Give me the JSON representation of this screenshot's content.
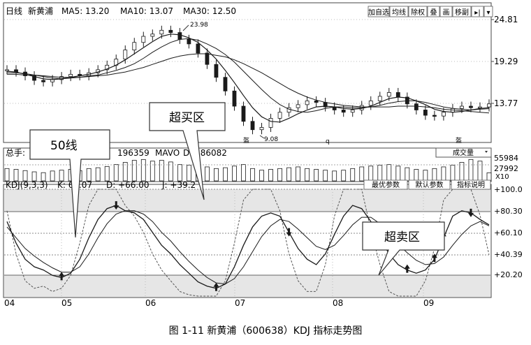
{
  "price_header": {
    "period": "日线",
    "stock": "新黄浦",
    "ma5": "MA5: 13.20",
    "ma10": "MA10: 13.07",
    "ma30": "MA30: 12.50"
  },
  "toolbar": [
    "加自选",
    "均线",
    "除权",
    "叠",
    "画",
    "移副",
    "▸|",
    "▾"
  ],
  "volume_header": {
    "label": "总手:",
    "value": "196359",
    "mavol": "MAVO",
    "mavol_value": "D: 286082",
    "dropdown": "成交量"
  },
  "kdj_header": {
    "name": "KDJ(9,3,3)",
    "k": "K: 67.07",
    "d": "D: +66.00",
    "j": "J: +39.2"
  },
  "kdj_buttons": [
    "最优参数",
    "默认参数",
    "指标说明"
  ],
  "price_axis": [
    "24.81",
    "19.29",
    "13.77"
  ],
  "volume_axis": [
    "55984",
    "27992",
    "X10"
  ],
  "kdj_axis": [
    "+100.0",
    "+80.30",
    "+60.10",
    "+40.39",
    "+20.20"
  ],
  "x_axis": [
    "04",
    "05",
    "06",
    "07",
    "08",
    "09"
  ],
  "price_annotations": {
    "high": "23.98",
    "low": "9.08",
    "mark1": "盔",
    "mark2": "q",
    "mark3": "盔"
  },
  "callouts": {
    "line50": "50线",
    "overbought": "超买区",
    "oversold": "超卖区"
  },
  "caption": "图 1-11  新黄浦（600638）KDJ 指标走势图",
  "colors": {
    "line": "#1a1a1a",
    "zone": "#e6e6e6",
    "grid": "#9a9a9a"
  },
  "chart_data": {
    "type": "line",
    "price_range": [
      9.08,
      23.98
    ],
    "price_ticks": [
      24.81,
      19.29,
      13.77
    ],
    "kdj_range": [
      0,
      100
    ],
    "kdj_ticks": [
      100.0,
      80.3,
      60.1,
      40.39,
      20.2
    ],
    "volume_ticks": [
      55984,
      27992
    ],
    "months": [
      "04",
      "05",
      "06",
      "07",
      "08",
      "09"
    ],
    "price_close": [
      18.2,
      17.9,
      17.4,
      16.8,
      16.6,
      16.9,
      17.3,
      17.6,
      17.4,
      17.8,
      18.2,
      18.8,
      19.6,
      20.8,
      21.8,
      22.6,
      22.9,
      23.4,
      23.1,
      22.2,
      21.6,
      20.4,
      18.9,
      17.2,
      15.4,
      13.4,
      11.4,
      10.3,
      10.6,
      11.8,
      12.6,
      13.2,
      13.6,
      14.1,
      13.9,
      13.3,
      12.9,
      12.6,
      12.9,
      13.5,
      14.1,
      14.7,
      15.2,
      14.6,
      13.7,
      12.9,
      12.2,
      12.1,
      12.6,
      13.1,
      13.4,
      13.2,
      13.3,
      13.7
    ],
    "ma5": [
      18.0,
      17.9,
      17.6,
      17.3,
      17.0,
      16.9,
      17.0,
      17.2,
      17.4,
      17.6,
      17.9,
      18.3,
      18.8,
      19.5,
      20.3,
      21.1,
      21.9,
      22.6,
      22.9,
      22.8,
      22.4,
      21.8,
      20.8,
      19.6,
      18.1,
      16.5,
      14.8,
      13.2,
      12.0,
      11.4,
      11.3,
      11.8,
      12.4,
      12.9,
      13.3,
      13.4,
      13.3,
      13.1,
      13.0,
      13.1,
      13.4,
      13.9,
      14.4,
      14.6,
      14.5,
      14.1,
      13.6,
      13.0,
      12.7,
      12.6,
      12.7,
      12.9,
      13.1,
      13.2
    ],
    "ma10": [
      17.8,
      17.8,
      17.7,
      17.5,
      17.3,
      17.1,
      17.0,
      17.1,
      17.2,
      17.4,
      17.5,
      17.8,
      18.1,
      18.5,
      19.0,
      19.7,
      20.5,
      21.2,
      21.8,
      22.2,
      22.3,
      22.1,
      21.6,
      21.0,
      20.2,
      19.2,
      18.0,
      16.8,
      15.6,
      14.5,
      13.6,
      13.0,
      12.7,
      12.6,
      12.8,
      13.1,
      13.3,
      13.3,
      13.2,
      13.2,
      13.3,
      13.5,
      13.8,
      14.0,
      14.1,
      14.1,
      13.9,
      13.6,
      13.3,
      13.1,
      13.0,
      12.9,
      13.0,
      13.07
    ],
    "ma30": [
      17.6,
      17.6,
      17.5,
      17.5,
      17.4,
      17.3,
      17.2,
      17.2,
      17.2,
      17.3,
      17.4,
      17.5,
      17.7,
      17.9,
      18.2,
      18.5,
      18.9,
      19.3,
      19.7,
      20.0,
      20.2,
      20.3,
      20.3,
      20.1,
      19.9,
      19.5,
      19.0,
      18.4,
      17.8,
      17.1,
      16.4,
      15.7,
      15.1,
      14.6,
      14.2,
      13.9,
      13.7,
      13.5,
      13.4,
      13.3,
      13.3,
      13.3,
      13.3,
      13.4,
      13.4,
      13.4,
      13.3,
      13.2,
      13.0,
      12.9,
      12.8,
      12.7,
      12.6,
      12.5
    ],
    "volume": [
      30000,
      28000,
      25000,
      22000,
      20000,
      24000,
      26000,
      28000,
      25000,
      30000,
      32000,
      35000,
      40000,
      45000,
      50000,
      52000,
      48000,
      50000,
      46000,
      40000,
      38000,
      36000,
      34000,
      30000,
      32000,
      36000,
      40000,
      30000,
      26000,
      28000,
      30000,
      32000,
      34000,
      30000,
      28000,
      26000,
      24000,
      26000,
      30000,
      34000,
      36000,
      38000,
      40000,
      36000,
      32000,
      28000,
      26000,
      30000,
      34000,
      38000,
      45000,
      52000,
      48000,
      19636
    ],
    "kdj_k": [
      70,
      50,
      35,
      28,
      25,
      20,
      18,
      22,
      35,
      55,
      72,
      82,
      85,
      80,
      78,
      72,
      60,
      48,
      40,
      30,
      22,
      14,
      10,
      8,
      12,
      28,
      48,
      65,
      75,
      78,
      75,
      60,
      45,
      35,
      30,
      40,
      58,
      75,
      85,
      82,
      70,
      55,
      40,
      30,
      25,
      22,
      25,
      35,
      55,
      75,
      80,
      78,
      72,
      67
    ],
    "kdj_d": [
      65,
      55,
      45,
      38,
      32,
      27,
      23,
      23,
      28,
      40,
      55,
      68,
      77,
      80,
      80,
      77,
      70,
      60,
      52,
      42,
      33,
      25,
      18,
      13,
      12,
      17,
      28,
      42,
      56,
      66,
      72,
      70,
      63,
      55,
      47,
      44,
      48,
      57,
      67,
      74,
      74,
      68,
      59,
      49,
      41,
      34,
      30,
      31,
      37,
      48,
      58,
      66,
      70,
      66
    ],
    "kdj_j": [
      80,
      40,
      15,
      8,
      10,
      5,
      8,
      20,
      50,
      85,
      100,
      100,
      100,
      85,
      75,
      60,
      40,
      25,
      15,
      5,
      2,
      0,
      0,
      0,
      15,
      50,
      90,
      100,
      100,
      100,
      80,
      40,
      15,
      5,
      5,
      30,
      75,
      100,
      100,
      100,
      62,
      30,
      5,
      0,
      0,
      0,
      15,
      45,
      90,
      100,
      100,
      100,
      76,
      39.2
    ]
  }
}
